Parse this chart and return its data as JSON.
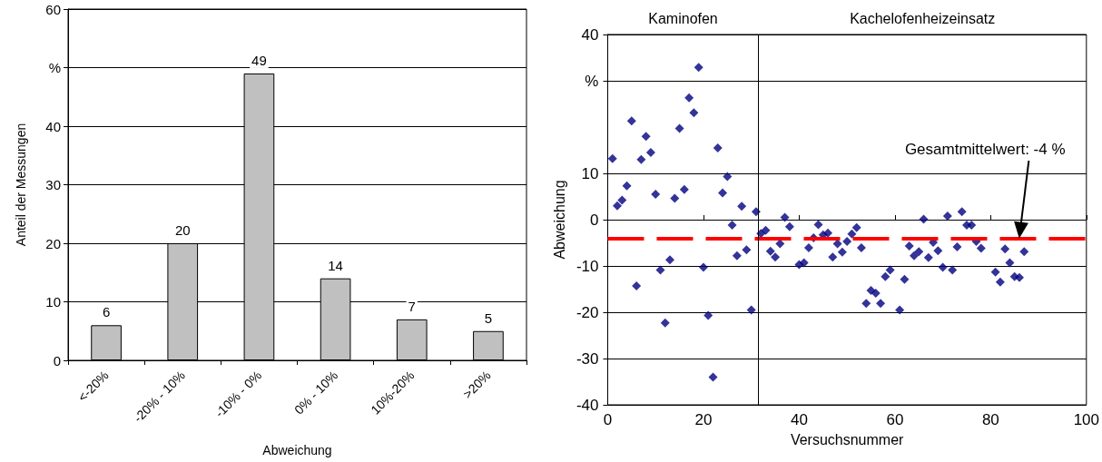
{
  "chart_data": [
    {
      "type": "bar",
      "xlabel": "Abweichung",
      "ylabel": "Anteil der Messungen",
      "categories": [
        "<-20%",
        "-20% - 10%",
        "-10% - 0%",
        "0% - 10%",
        "10%-20%",
        ">20%"
      ],
      "values": [
        6,
        20,
        49,
        14,
        7,
        5
      ],
      "color": "#c0c0c0",
      "data_labels": true,
      "ylim": [
        0,
        60
      ],
      "yticks": [
        0,
        10,
        20,
        30,
        40,
        {
          "value": 50,
          "label": "%"
        },
        60
      ],
      "grid": "y"
    },
    {
      "type": "scatter",
      "xlabel": "Versuchsnummer",
      "ylabel": "Abweichung",
      "marker": "diamond",
      "grid": "y",
      "xlim": [
        0,
        100
      ],
      "xticks": [
        0,
        20,
        40,
        60,
        80,
        100
      ],
      "ylim": [
        -40,
        40
      ],
      "yticks": [
        -40,
        -30,
        -20,
        -10,
        0,
        10,
        {
          "value": 30,
          "label": "%"
        },
        40
      ],
      "series": [
        {
          "color": "#000080",
          "x": [
            1,
            2,
            3,
            4,
            5,
            6,
            7,
            8,
            9,
            10,
            11,
            12,
            13,
            14,
            15,
            16,
            17,
            18,
            19,
            20,
            21,
            22,
            23,
            24,
            25,
            26,
            27,
            28,
            29,
            30,
            31,
            32,
            33,
            34,
            35,
            36,
            37,
            38,
            40,
            41,
            42,
            43,
            44,
            45,
            46,
            47,
            48,
            49,
            50,
            51,
            52,
            53,
            54,
            55,
            56,
            57,
            58,
            59,
            61,
            62,
            63,
            64,
            65,
            66,
            67,
            68,
            69,
            70,
            71,
            72,
            73,
            74,
            75,
            76,
            77,
            78,
            81,
            82,
            83,
            84,
            85,
            86,
            87
          ],
          "values": [
            13.2,
            3,
            4.2,
            7.3,
            21.3,
            -14.3,
            13,
            18,
            14.5,
            5.5,
            -10.9,
            -22.3,
            -8.7,
            4.6,
            19.7,
            6.5,
            26.3,
            23.1,
            32.9,
            -10.3,
            -20.7,
            -34,
            15.5,
            5.8,
            9.3,
            -1.2,
            -7.8,
            2.9,
            -6.5,
            -19.5,
            1.7,
            -3,
            -2.3,
            -6.8,
            -8.1,
            -5.2,
            0.5,
            -1.5,
            -9.7,
            -9.3,
            -6.1,
            -3.9,
            -1.1,
            -3.3,
            -2.9,
            -8.1,
            -5.2,
            -7,
            -4.7,
            -3.1,
            -1.7,
            -6.1,
            -18.1,
            -15.3,
            -15.9,
            -18.1,
            -12.3,
            -10.9,
            -19.5,
            -12.9,
            -5.7,
            -7.8,
            -6.9,
            0.1,
            -8.2,
            -4.9,
            -6.7,
            -10.3,
            0.8,
            -10.9,
            -5.9,
            1.7,
            -1.2,
            -1.2,
            -4.7,
            -6.2,
            -11.3,
            -13.5,
            -6.3,
            -9.3,
            -12.3,
            -12.5,
            -6.9
          ]
        }
      ],
      "ref_lines": [
        {
          "axis": "y",
          "value": -4,
          "color": "#ff0000",
          "line_style": "dashed"
        },
        {
          "axis": "x",
          "value": 31.5,
          "color": "#000000",
          "line_style": "solid"
        }
      ],
      "annotations": [
        "Kaminofen",
        "Kachelofenheizeinsatz",
        "Gesamtmittelwert: -4 %"
      ]
    }
  ]
}
